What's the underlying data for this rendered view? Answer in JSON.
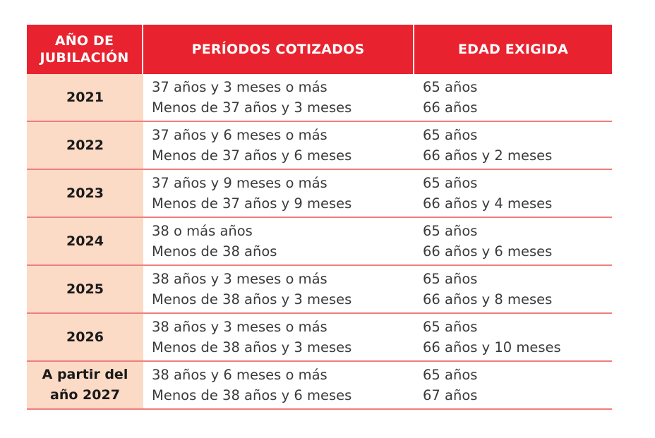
{
  "header": {
    "col_year": "AÑO DE\nJUBILACIÓN",
    "col_periods": "PERÍODOS COTIZADOS",
    "col_age": "EDAD EXIGIDA"
  },
  "rows": [
    {
      "year": "2021",
      "period_1": "37 años y 3 meses o más",
      "period_2": "Menos de 37 años y 3 meses",
      "age_1": "65 años",
      "age_2": "66 años"
    },
    {
      "year": "2022",
      "period_1": "37 años y 6 meses o más",
      "period_2": "Menos de 37 años y 6 meses",
      "age_1": "65 años",
      "age_2": "66 años y 2 meses"
    },
    {
      "year": "2023",
      "period_1": "37 años y 9 meses o más",
      "period_2": "Menos de 37 años y 9 meses",
      "age_1": "65 años",
      "age_2": "66 años y 4 meses"
    },
    {
      "year": "2024",
      "period_1": "38 o más años",
      "period_2": "Menos de 38 años",
      "age_1": "65 años",
      "age_2": "66 años y 6 meses"
    },
    {
      "year": "2025",
      "period_1": "38 años y 3 meses o más",
      "period_2": "Menos de 38 años y 3 meses",
      "age_1": "65 años",
      "age_2": "66 años y 8 meses"
    },
    {
      "year": "2026",
      "period_1": "38 años y 3 meses o más",
      "period_2": "Menos de 38 años y 3 meses",
      "age_1": "65 años",
      "age_2": "66 años y 10 meses"
    },
    {
      "year": "A partir del\naño 2027",
      "period_1": "38 años y 6 meses o más",
      "period_2": "Menos de 38 años y 6 meses",
      "age_1": "65 años",
      "age_2": "67 años"
    }
  ],
  "colors": {
    "header_bg": "#e8232f",
    "year_cell_bg": "#fbdac6",
    "row_divider": "#f07d7f"
  }
}
